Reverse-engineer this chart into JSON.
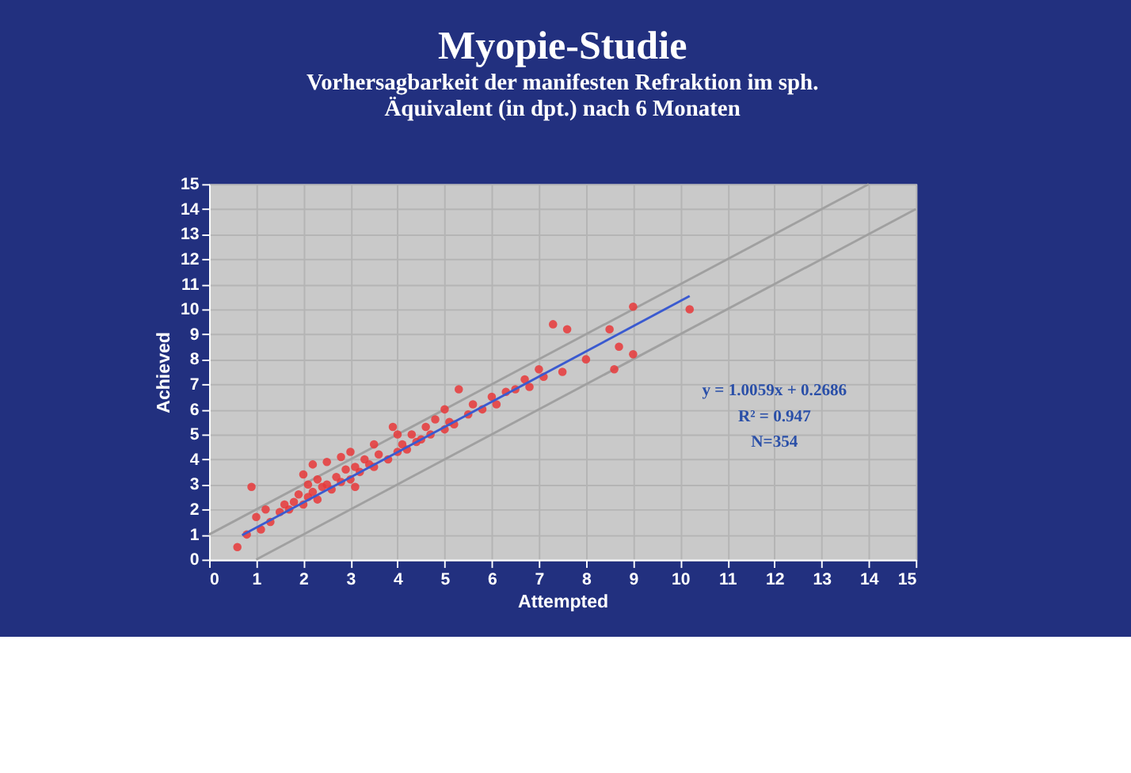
{
  "chart_data": {
    "type": "scatter",
    "title": "Myopie-Studie",
    "subtitle": [
      "Vorhersagbarkeit der manifesten Refraktion im sph.",
      "Äquivalent (in dpt.) nach 6 Monaten"
    ],
    "xlabel": "Attempted",
    "ylabel": "Achieved",
    "xlim": [
      0,
      15
    ],
    "ylim": [
      0,
      15
    ],
    "xticks": [
      0,
      1,
      2,
      3,
      4,
      5,
      6,
      7,
      8,
      9,
      10,
      11,
      12,
      13,
      14,
      15
    ],
    "yticks": [
      0,
      1,
      2,
      3,
      4,
      5,
      6,
      7,
      8,
      9,
      10,
      11,
      12,
      13,
      14,
      15
    ],
    "grid": true,
    "annotations": [
      "y = 1.0059x + 0.2686",
      "R² = 0.947",
      "N=354"
    ],
    "series": [
      {
        "type": "line",
        "color": "#a0a0a0",
        "x": [
          0,
          14
        ],
        "values": [
          1,
          15
        ]
      },
      {
        "type": "line",
        "color": "#a0a0a0",
        "x": [
          1,
          15
        ],
        "values": [
          0,
          14
        ]
      },
      {
        "marker": "circle",
        "color": "#e8383a",
        "x": [
          0.6,
          0.8,
          0.9,
          1.0,
          1.1,
          1.2,
          1.3,
          1.5,
          1.6,
          1.7,
          1.8,
          1.9,
          2.0,
          2.0,
          2.1,
          2.1,
          2.2,
          2.2,
          2.3,
          2.3,
          2.4,
          2.5,
          2.5,
          2.6,
          2.7,
          2.8,
          2.8,
          2.9,
          3.0,
          3.0,
          3.1,
          3.1,
          3.2,
          3.3,
          3.4,
          3.5,
          3.5,
          3.6,
          3.8,
          3.9,
          4.0,
          4.0,
          4.1,
          4.2,
          4.3,
          4.4,
          4.5,
          4.6,
          4.7,
          4.8,
          5.0,
          5.0,
          5.1,
          5.2,
          5.3,
          5.5,
          5.6,
          5.8,
          6.0,
          6.1,
          6.3,
          6.5,
          6.7,
          6.8,
          7.0,
          7.1,
          7.3,
          7.5,
          7.6,
          8.0,
          8.5,
          8.6,
          8.7,
          9.0,
          9.0,
          10.2
        ],
        "values": [
          0.5,
          1.0,
          2.9,
          1.7,
          1.2,
          2.0,
          1.5,
          1.9,
          2.2,
          2.0,
          2.3,
          2.6,
          2.2,
          3.4,
          2.5,
          3.0,
          2.7,
          3.8,
          2.4,
          3.2,
          2.9,
          3.0,
          3.9,
          2.8,
          3.3,
          3.1,
          4.1,
          3.6,
          3.2,
          4.3,
          3.7,
          2.9,
          3.5,
          4.0,
          3.8,
          3.7,
          4.6,
          4.2,
          4.0,
          5.3,
          4.3,
          5.0,
          4.6,
          4.4,
          5.0,
          4.7,
          4.8,
          5.3,
          5.0,
          5.6,
          5.2,
          6.0,
          5.5,
          5.4,
          6.8,
          5.8,
          6.2,
          6.0,
          6.5,
          6.2,
          6.7,
          6.8,
          7.2,
          6.9,
          7.6,
          7.3,
          9.4,
          7.5,
          9.2,
          8.0,
          9.2,
          7.6,
          8.5,
          8.2,
          10.1,
          10.0
        ]
      },
      {
        "type": "line",
        "color": "#3a5ad0",
        "x": [
          0.7,
          10.2
        ],
        "values": [
          0.97,
          10.53
        ]
      }
    ]
  }
}
